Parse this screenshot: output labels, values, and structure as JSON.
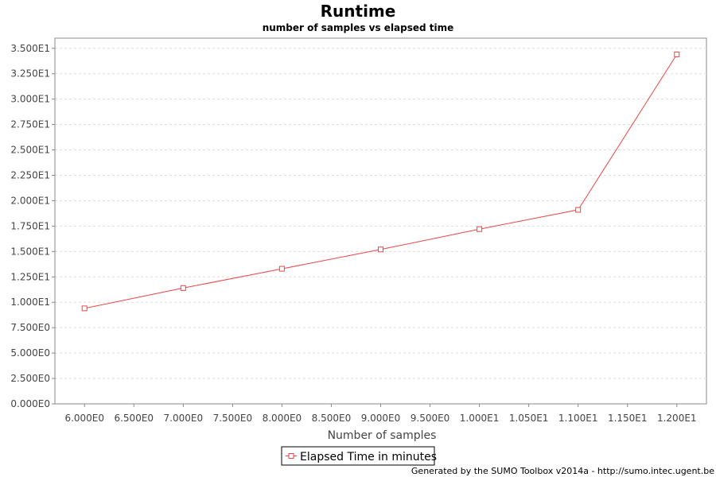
{
  "chart_data": {
    "type": "line",
    "title": "Runtime",
    "subtitle": "number of samples vs elapsed time",
    "xlabel": "Number of samples",
    "ylabel": "",
    "xlim": [
      5.7,
      12.3
    ],
    "ylim": [
      0,
      36
    ],
    "x_ticks": [
      6,
      6.5,
      7,
      7.5,
      8,
      8.5,
      9,
      9.5,
      10,
      10.5,
      11,
      11.5,
      12
    ],
    "x_tick_labels": [
      "6.000E0",
      "6.500E0",
      "7.000E0",
      "7.500E0",
      "8.000E0",
      "8.500E0",
      "9.000E0",
      "9.500E0",
      "1.000E1",
      "1.050E1",
      "1.100E1",
      "1.150E1",
      "1.200E1"
    ],
    "y_ticks": [
      0,
      2.5,
      5,
      7.5,
      10,
      12.5,
      15,
      17.5,
      20,
      22.5,
      25,
      27.5,
      30,
      32.5,
      35
    ],
    "y_tick_labels": [
      "0.000E0",
      "2.500E0",
      "5.000E0",
      "7.500E0",
      "1.000E1",
      "1.250E1",
      "1.500E1",
      "1.750E1",
      "2.000E1",
      "2.250E1",
      "2.500E1",
      "2.750E1",
      "3.000E1",
      "3.250E1",
      "3.500E1"
    ],
    "grid": true,
    "legend_position": "bottom-center",
    "series": [
      {
        "name": "Elapsed Time in minutes",
        "color": "#ee4444",
        "marker": "square",
        "x": [
          6,
          7,
          8,
          9,
          10,
          11,
          12
        ],
        "y": [
          9.4,
          11.4,
          13.3,
          15.2,
          17.2,
          19.1,
          34.4
        ]
      }
    ]
  },
  "footer": {
    "text": "Generated by the SUMO Toolbox v2014a - http://sumo.intec.ugent.be"
  }
}
